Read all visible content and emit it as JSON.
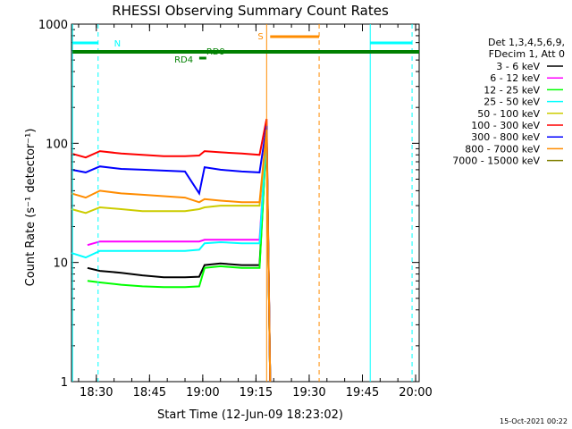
{
  "chart_data": {
    "type": "line",
    "title": "RHESSI Observing Summary Count Rates",
    "xlabel": "Start Time (12-Jun-09 18:23:02)",
    "ylabel": "Count Rate (s⁻¹ detector⁻¹)",
    "x_unit": "minutes after 18:23:02",
    "xlim": [
      0,
      98
    ],
    "ylim": [
      1,
      1000
    ],
    "yscale": "log",
    "x_ticks": [
      {
        "pos": 7.0,
        "label": "18:30"
      },
      {
        "pos": 22.0,
        "label": "18:45"
      },
      {
        "pos": 37.0,
        "label": "19:00"
      },
      {
        "pos": 52.0,
        "label": "19:15"
      },
      {
        "pos": 67.0,
        "label": "19:30"
      },
      {
        "pos": 82.0,
        "label": "19:45"
      },
      {
        "pos": 97.0,
        "label": "20:00"
      }
    ],
    "y_ticks": [
      {
        "value": 1,
        "label": "1"
      },
      {
        "value": 10,
        "label": "10"
      },
      {
        "value": 100,
        "label": "100"
      },
      {
        "value": 1000,
        "label": "1000"
      }
    ],
    "legend_header": [
      "Det 1,3,4,5,6,9,",
      "FDecim 1, Att 0"
    ],
    "legend_placement": "right",
    "series": [
      {
        "name": "3 - 6 keV",
        "color": "#000000",
        "points": [
          [
            4.5,
            9.0
          ],
          [
            8,
            8.5
          ],
          [
            14,
            8.2
          ],
          [
            20,
            7.8
          ],
          [
            26,
            7.5
          ],
          [
            32,
            7.5
          ],
          [
            36,
            7.6
          ],
          [
            37.5,
            9.5
          ],
          [
            42,
            9.8
          ],
          [
            48,
            9.5
          ],
          [
            53,
            9.5
          ],
          [
            55,
            120
          ],
          [
            56,
            1
          ]
        ]
      },
      {
        "name": "6 - 12 keV",
        "color": "#ff00ff",
        "points": [
          [
            4.5,
            14
          ],
          [
            8,
            15
          ],
          [
            14,
            15
          ],
          [
            20,
            15
          ],
          [
            26,
            15
          ],
          [
            32,
            15
          ],
          [
            36,
            15
          ],
          [
            37.5,
            15.5
          ],
          [
            42,
            15.5
          ],
          [
            48,
            15.5
          ],
          [
            53,
            15.5
          ],
          [
            55,
            120
          ],
          [
            56,
            1
          ]
        ]
      },
      {
        "name": "12 - 25 keV",
        "color": "#00ff00",
        "points": [
          [
            4.5,
            7.0
          ],
          [
            8,
            6.8
          ],
          [
            14,
            6.5
          ],
          [
            20,
            6.3
          ],
          [
            26,
            6.2
          ],
          [
            32,
            6.2
          ],
          [
            36,
            6.3
          ],
          [
            37.5,
            9.0
          ],
          [
            42,
            9.3
          ],
          [
            48,
            9.0
          ],
          [
            53,
            9.0
          ],
          [
            55,
            120
          ],
          [
            56,
            1
          ]
        ]
      },
      {
        "name": "25 - 50 keV",
        "color": "#00ffff",
        "points": [
          [
            0,
            12
          ],
          [
            4,
            11
          ],
          [
            8,
            12.5
          ],
          [
            14,
            12.5
          ],
          [
            20,
            12.5
          ],
          [
            26,
            12.5
          ],
          [
            32,
            12.5
          ],
          [
            36,
            12.8
          ],
          [
            37.5,
            14.5
          ],
          [
            42,
            14.8
          ],
          [
            48,
            14.5
          ],
          [
            53,
            14.5
          ],
          [
            55,
            120
          ],
          [
            56,
            1
          ]
        ]
      },
      {
        "name": "50 - 100 keV",
        "color": "#cccc00",
        "points": [
          [
            0,
            28
          ],
          [
            4,
            26
          ],
          [
            8,
            29
          ],
          [
            14,
            28
          ],
          [
            20,
            27
          ],
          [
            26,
            27
          ],
          [
            32,
            27
          ],
          [
            36,
            28
          ],
          [
            37.5,
            29
          ],
          [
            42,
            30
          ],
          [
            48,
            30
          ],
          [
            53,
            30
          ],
          [
            55,
            120
          ],
          [
            56,
            1
          ]
        ]
      },
      {
        "name": "100 - 300 keV",
        "color": "#ff0000",
        "points": [
          [
            0,
            82
          ],
          [
            4,
            76
          ],
          [
            8,
            86
          ],
          [
            14,
            82
          ],
          [
            20,
            80
          ],
          [
            26,
            78
          ],
          [
            32,
            78
          ],
          [
            36,
            79
          ],
          [
            37.5,
            86
          ],
          [
            42,
            84
          ],
          [
            48,
            82
          ],
          [
            53,
            80
          ],
          [
            55,
            160
          ],
          [
            56,
            1
          ]
        ]
      },
      {
        "name": "300 - 800 keV",
        "color": "#0000ff",
        "points": [
          [
            0,
            60
          ],
          [
            4,
            57
          ],
          [
            8,
            64
          ],
          [
            14,
            61
          ],
          [
            20,
            60
          ],
          [
            26,
            59
          ],
          [
            32,
            58
          ],
          [
            36,
            38
          ],
          [
            37.5,
            63
          ],
          [
            42,
            60
          ],
          [
            48,
            58
          ],
          [
            53,
            57
          ],
          [
            55,
            140
          ],
          [
            56,
            1
          ]
        ]
      },
      {
        "name": "800 - 7000 keV",
        "color": "#ff8c00",
        "points": [
          [
            0,
            38
          ],
          [
            4,
            35
          ],
          [
            8,
            40
          ],
          [
            14,
            38
          ],
          [
            20,
            37
          ],
          [
            26,
            36
          ],
          [
            32,
            35
          ],
          [
            36,
            32
          ],
          [
            37.5,
            34
          ],
          [
            42,
            33
          ],
          [
            48,
            32
          ],
          [
            53,
            32
          ],
          [
            55,
            130
          ],
          [
            56,
            1
          ]
        ]
      },
      {
        "name": "7000 - 15000 keV",
        "color": "#808000",
        "points": []
      }
    ],
    "annotations": [
      "N",
      "S",
      "RD4",
      "RD9"
    ]
  }
}
